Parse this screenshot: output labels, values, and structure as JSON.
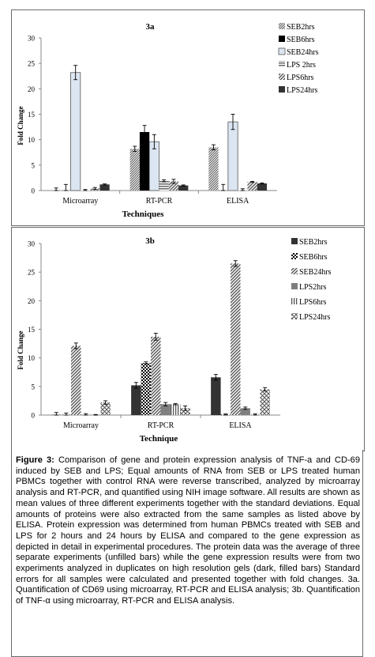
{
  "chart_data": [
    {
      "type": "bar",
      "title": "3a",
      "xlabel": "Techniques",
      "ylabel": "Fold Change",
      "ylim": [
        0,
        30
      ],
      "yticks": [
        "0",
        "5",
        "10",
        "15",
        "20",
        "25",
        "30"
      ],
      "categories": [
        "Microarray",
        "RT-PCR",
        "ELISA"
      ],
      "legend_position": "top-right",
      "series": [
        {
          "name": "SEB2hrs",
          "values": [
            0.1,
            8.2,
            8.5
          ],
          "errors": [
            0.4,
            0.5,
            0.5
          ],
          "pattern": "dense-diag",
          "color": "#8c8c8c"
        },
        {
          "name": "SEB6hrs",
          "values": [
            0.0,
            11.5,
            0.0
          ],
          "errors": [
            1.2,
            1.3,
            1.2
          ],
          "pattern": "solid",
          "color": "#000000"
        },
        {
          "name": "SEB24hrs",
          "values": [
            23.2,
            9.6,
            13.5
          ],
          "errors": [
            1.4,
            1.4,
            1.5
          ],
          "pattern": "solid",
          "color": "#dce6f2"
        },
        {
          "name": "LPS 2hrs",
          "values": [
            0.1,
            1.9,
            0.05
          ],
          "errors": [
            0.1,
            0.2,
            0.3
          ],
          "pattern": "hlines",
          "color": "#7f7f7f"
        },
        {
          "name": "LPS6hrs",
          "values": [
            0.4,
            1.8,
            1.7
          ],
          "errors": [
            0.2,
            0.4,
            0.1
          ],
          "pattern": "wide-diag",
          "color": "#7f7f7f"
        },
        {
          "name": "LPS24hrs",
          "values": [
            1.2,
            1.0,
            1.4
          ],
          "errors": [
            0.1,
            0.1,
            0.1
          ],
          "pattern": "solid",
          "color": "#333333"
        }
      ]
    },
    {
      "type": "bar",
      "title": "3b",
      "xlabel": "Technique",
      "ylabel": "Fold Change",
      "ylim": [
        0,
        30
      ],
      "yticks": [
        "0",
        "5",
        "10",
        "15",
        "20",
        "25",
        "30"
      ],
      "categories": [
        "Microarray",
        "RT-PCR",
        "ELISA"
      ],
      "legend_position": "top-right",
      "series": [
        {
          "name": "SEB2hrs",
          "values": [
            0.05,
            5.2,
            6.6
          ],
          "errors": [
            0.4,
            0.5,
            0.5
          ],
          "pattern": "solid",
          "color": "#333333"
        },
        {
          "name": "SEB6hrs",
          "values": [
            0.05,
            9.1,
            0.1
          ],
          "errors": [
            0.3,
            0.2,
            0.1
          ],
          "pattern": "checker",
          "color": "#000000"
        },
        {
          "name": "SEB24hrs",
          "values": [
            12.1,
            13.7,
            26.5
          ],
          "errors": [
            0.5,
            0.6,
            0.5
          ],
          "pattern": "wide-diag",
          "color": "#7f7f7f"
        },
        {
          "name": "LPS2hrs",
          "values": [
            0.05,
            1.9,
            1.2
          ],
          "errors": [
            0.2,
            0.3,
            0.2
          ],
          "pattern": "solid",
          "color": "#7f7f7f"
        },
        {
          "name": "LPS6hrs",
          "values": [
            0.0,
            1.9,
            0.1
          ],
          "errors": [
            0.1,
            0.1,
            0.1
          ],
          "pattern": "vlines",
          "color": "#7f7f7f"
        },
        {
          "name": "LPS24hrs",
          "values": [
            2.2,
            1.2,
            4.5
          ],
          "errors": [
            0.3,
            0.4,
            0.3
          ],
          "pattern": "diamond",
          "color": "#7f7f7f"
        }
      ]
    }
  ],
  "caption": {
    "label": "Figure 3:",
    "text": "Comparison of gene and protein expression analysis of TNF-a and CD-69 induced by SEB and LPS; Equal amounts of RNA from SEB or LPS treated human PBMCs together with control RNA were reverse transcribed, analyzed by microarray analysis and RT-PCR, and quantified using NIH image software. All results are shown as mean values of three different experiments together with the standard deviations. Equal amounts of proteins were also extracted from the same samples as listed above by ELISA. Protein expression was determined from human PBMCs treated with SEB and LPS for 2 hours and 24 hours by ELISA and compared to the gene expression as depicted in detail in experimental procedures. The protein data was the average of three separate experiments (unfilled bars) while the gene expression results were from two experiments analyzed in duplicates on high resolution gels (dark, filled bars) Standard errors for all samples were calculated and presented together with fold changes. 3a. Quantification of CD69 using microarray, RT-PCR and ELISA analysis; 3b. Quantification of TNF-α using microarray, RT-PCR and ELISA analysis."
  }
}
